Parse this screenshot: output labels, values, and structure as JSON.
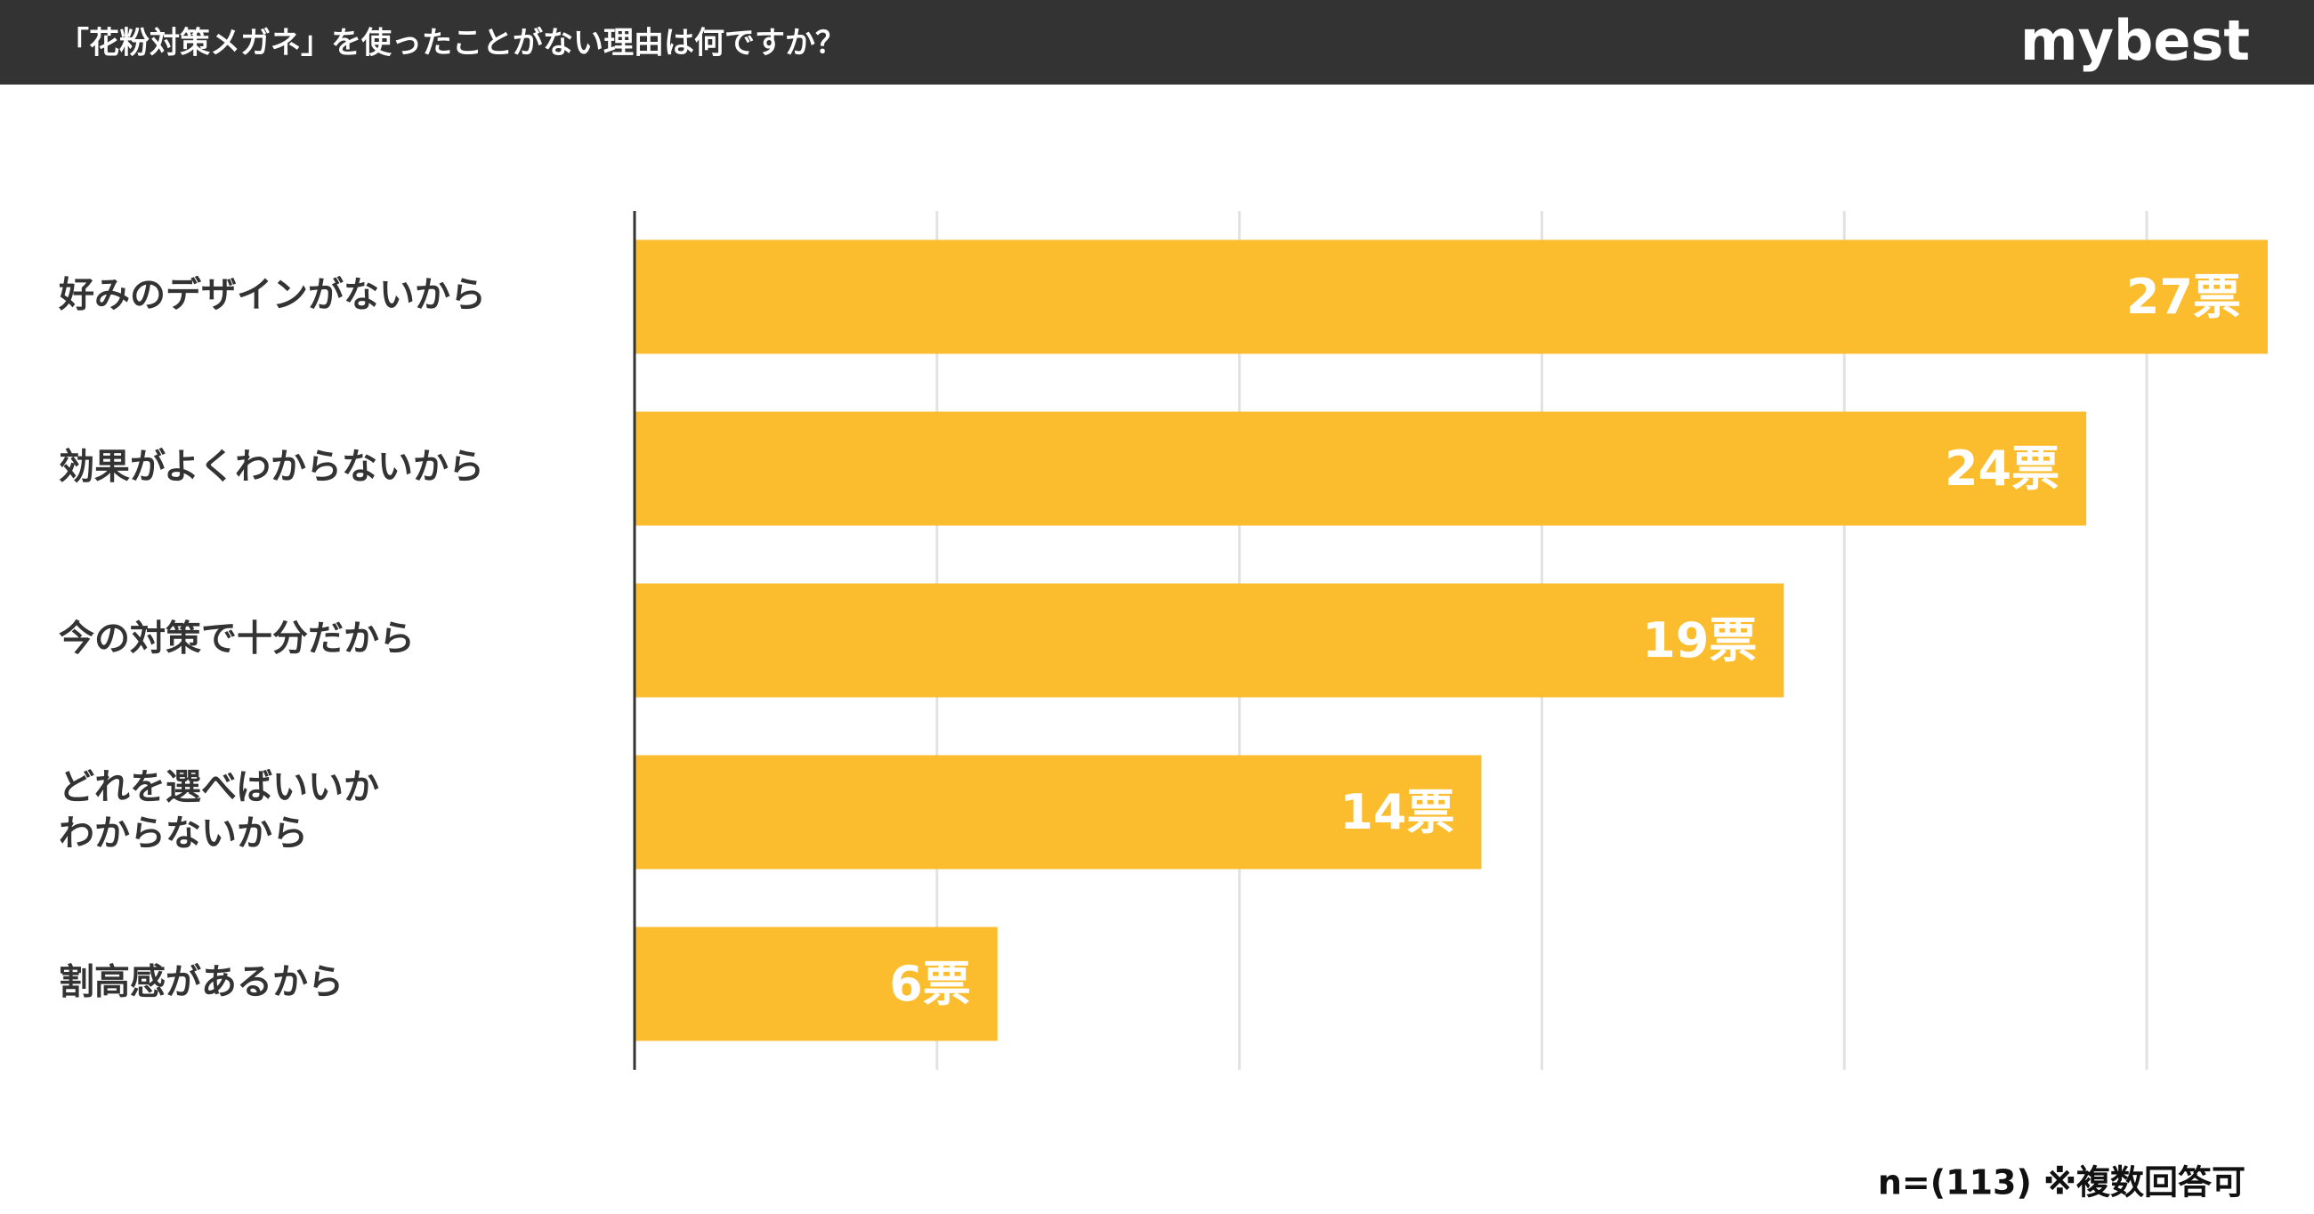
{
  "chart_data": {
    "type": "barh",
    "title": "「花粉対策メガネ」を使ったことがない理由は何ですか？",
    "brand": "mybest",
    "note": "n=(113) ※複数回答可",
    "categories": [
      "好みのデザインがないから",
      "効果がよくわからないから",
      "今の対策で十分だから",
      "どれを選べばいいか\nわからないから",
      "割高感があるから"
    ],
    "values": [
      27,
      24,
      19,
      14,
      6
    ],
    "value_labels": [
      "27票",
      "24票",
      "19票",
      "14票",
      "6票"
    ],
    "color": "#fbbd2d",
    "xlim": [
      0,
      27
    ],
    "xticks": [
      0,
      5,
      10,
      15,
      20,
      25
    ],
    "grid": true
  }
}
